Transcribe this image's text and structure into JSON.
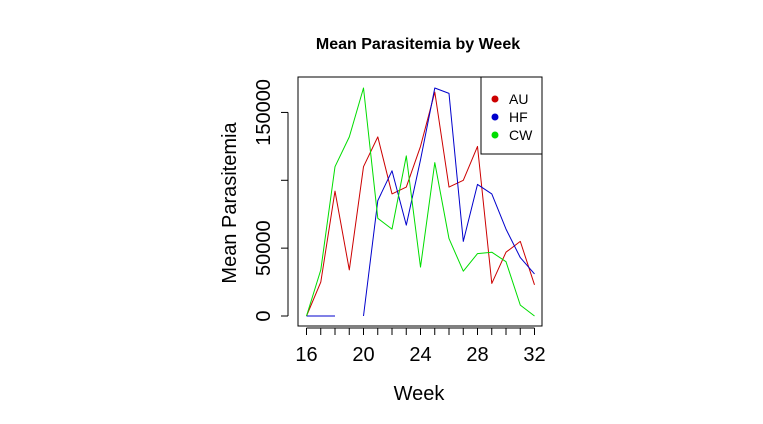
{
  "chart_data": {
    "type": "line",
    "title": "Mean Parasitemia by Week",
    "xlabel": "Week",
    "ylabel": "Mean Parasitemia",
    "xlim": [
      16,
      32
    ],
    "ylim": [
      0,
      170000
    ],
    "x_ticks": [
      16,
      20,
      24,
      28,
      32
    ],
    "x_minor_ticks": [
      16,
      17,
      18,
      19,
      20,
      21,
      22,
      23,
      24,
      25,
      26,
      27,
      28,
      29,
      30,
      31,
      32
    ],
    "y_ticks": [
      0,
      50000,
      100000,
      150000
    ],
    "y_tick_labels": [
      "0",
      "50000",
      "",
      "150000"
    ],
    "grid": false,
    "legend_position": "top-right",
    "series": [
      {
        "name": "AU",
        "color": "#cc0000",
        "x": [
          16,
          17,
          18,
          19,
          20,
          21,
          22,
          23,
          24,
          25,
          26,
          27,
          28,
          29,
          30,
          31,
          32
        ],
        "y": [
          0,
          25000,
          92000,
          34000,
          110000,
          132000,
          90000,
          95000,
          125000,
          165000,
          95000,
          100000,
          125000,
          24000,
          47000,
          55000,
          23000
        ]
      },
      {
        "name": "HF",
        "color": "#0000cc",
        "segments": [
          {
            "x": [
              16,
              17,
              18
            ],
            "y": [
              0,
              0,
              0
            ]
          },
          {
            "x": [
              20,
              21,
              22,
              23,
              24,
              25,
              26,
              27,
              28,
              29,
              30,
              31,
              32
            ],
            "y": [
              0,
              85000,
              107000,
              67000,
              115000,
              168000,
              164000,
              55000,
              97000,
              90000,
              64000,
              43000,
              31000
            ]
          }
        ]
      },
      {
        "name": "CW",
        "color": "#00dd00",
        "x": [
          16,
          17,
          18,
          19,
          20,
          21,
          22,
          23,
          24,
          25,
          26,
          27,
          28,
          29,
          30,
          31,
          32
        ],
        "y": [
          0,
          34000,
          110000,
          132000,
          168000,
          72000,
          64000,
          118000,
          36000,
          113000,
          57000,
          33000,
          46000,
          47000,
          40000,
          8000,
          0
        ]
      }
    ]
  }
}
